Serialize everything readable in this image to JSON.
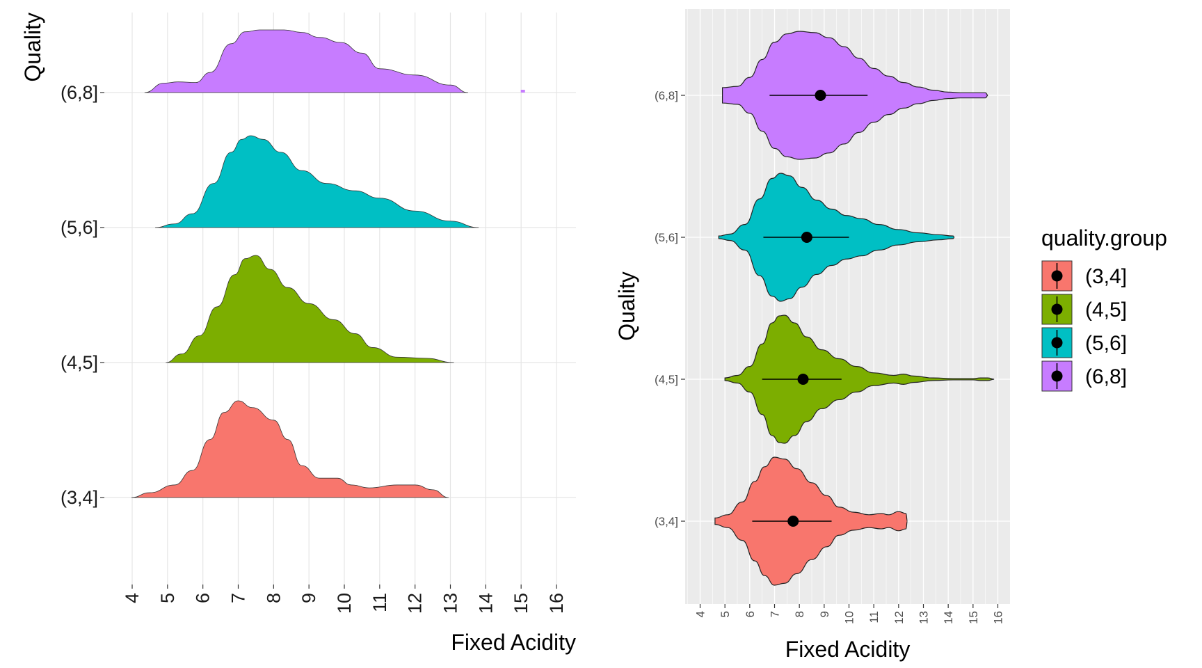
{
  "colors": {
    "(3,4]": "#F8766D",
    "(4,5]": "#7CAE00",
    "(5,6]": "#00BFC4",
    "(6,8]": "#C77CFF",
    "panel_bg_right": "#EBEBEB",
    "grid_left": "#E5E5E5",
    "grid_right": "#FFFFFF",
    "point": "#000000"
  },
  "chart_data": [
    {
      "type": "ridgeline",
      "xlabel": "Fixed Acidity",
      "ylabel": "Quality",
      "xlim": [
        4,
        16
      ],
      "x_ticks": [
        4,
        5,
        6,
        7,
        8,
        9,
        10,
        11,
        12,
        13,
        14,
        15,
        16
      ],
      "categories": [
        "(3,4]",
        "(4,5]",
        "(5,6]",
        "(6,8]"
      ],
      "grid": true,
      "series": [
        {
          "name": "(3,4]",
          "density": [
            [
              3.98,
              0
            ],
            [
              4.5,
              0.05
            ],
            [
              5.2,
              0.13
            ],
            [
              5.7,
              0.28
            ],
            [
              6.2,
              0.6
            ],
            [
              6.6,
              0.88
            ],
            [
              7.0,
              1.0
            ],
            [
              7.4,
              0.93
            ],
            [
              8.0,
              0.8
            ],
            [
              8.4,
              0.6
            ],
            [
              8.8,
              0.33
            ],
            [
              9.3,
              0.2
            ],
            [
              9.8,
              0.2
            ],
            [
              10.2,
              0.13
            ],
            [
              10.7,
              0.1
            ],
            [
              11.5,
              0.13
            ],
            [
              12.0,
              0.13
            ],
            [
              12.5,
              0.08
            ],
            [
              12.95,
              0
            ]
          ]
        },
        {
          "name": "(4,5]",
          "density": [
            [
              4.95,
              0
            ],
            [
              5.4,
              0.08
            ],
            [
              5.9,
              0.25
            ],
            [
              6.4,
              0.52
            ],
            [
              6.9,
              0.82
            ],
            [
              7.2,
              0.97
            ],
            [
              7.5,
              1.0
            ],
            [
              7.9,
              0.87
            ],
            [
              8.4,
              0.7
            ],
            [
              9.0,
              0.55
            ],
            [
              9.7,
              0.4
            ],
            [
              10.3,
              0.27
            ],
            [
              10.8,
              0.14
            ],
            [
              11.5,
              0.05
            ],
            [
              12.3,
              0.04
            ],
            [
              13.1,
              0
            ]
          ]
        },
        {
          "name": "(5,6]",
          "density": [
            [
              4.65,
              0
            ],
            [
              5.2,
              0.04
            ],
            [
              5.7,
              0.15
            ],
            [
              6.3,
              0.48
            ],
            [
              6.8,
              0.82
            ],
            [
              7.1,
              0.96
            ],
            [
              7.35,
              1.0
            ],
            [
              7.7,
              0.96
            ],
            [
              8.2,
              0.82
            ],
            [
              8.8,
              0.62
            ],
            [
              9.5,
              0.48
            ],
            [
              10.3,
              0.4
            ],
            [
              11.0,
              0.32
            ],
            [
              12.0,
              0.18
            ],
            [
              13.0,
              0.07
            ],
            [
              13.8,
              0
            ]
          ]
        },
        {
          "name": "(6,8]",
          "density": [
            [
              4.35,
              0
            ],
            [
              4.9,
              0.15
            ],
            [
              5.3,
              0.17
            ],
            [
              5.8,
              0.16
            ],
            [
              6.2,
              0.32
            ],
            [
              6.8,
              0.78
            ],
            [
              7.2,
              0.97
            ],
            [
              7.6,
              1.0
            ],
            [
              8.3,
              1.0
            ],
            [
              8.8,
              0.96
            ],
            [
              9.3,
              0.88
            ],
            [
              9.9,
              0.8
            ],
            [
              10.5,
              0.63
            ],
            [
              11.0,
              0.38
            ],
            [
              12.0,
              0.28
            ],
            [
              13.0,
              0.12
            ],
            [
              13.5,
              0
            ]
          ]
        }
      ],
      "outlier_blips": [
        {
          "series": "(6,8]",
          "x": 15.05
        }
      ]
    },
    {
      "type": "violin",
      "xlabel": "Fixed Acidity",
      "ylabel": "Quality",
      "xlim": [
        4,
        16
      ],
      "x_ticks": [
        4,
        5,
        6,
        7,
        8,
        9,
        10,
        11,
        12,
        13,
        14,
        15,
        16
      ],
      "categories": [
        "(3,4]",
        "(4,5]",
        "(5,6]",
        "(6,8]"
      ],
      "legend": {
        "title": "quality.group",
        "position": "right",
        "entries": [
          "(3,4]",
          "(4,5]",
          "(5,6]",
          "(6,8]"
        ]
      },
      "series": [
        {
          "name": "(3,4]",
          "mean": 7.75,
          "sd_range": [
            6.1,
            9.3
          ],
          "profile": [
            [
              4.6,
              0.05
            ],
            [
              5.1,
              0.1
            ],
            [
              5.7,
              0.3
            ],
            [
              6.2,
              0.62
            ],
            [
              6.6,
              0.85
            ],
            [
              7.0,
              1.0
            ],
            [
              7.4,
              0.97
            ],
            [
              7.9,
              0.82
            ],
            [
              8.5,
              0.6
            ],
            [
              9.1,
              0.4
            ],
            [
              9.6,
              0.22
            ],
            [
              10.2,
              0.14
            ],
            [
              10.8,
              0.1
            ],
            [
              11.3,
              0.12
            ],
            [
              11.6,
              0.1
            ],
            [
              12.0,
              0.15
            ],
            [
              12.3,
              0.12
            ],
            [
              12.35,
              0.0
            ]
          ]
        },
        {
          "name": "(4,5]",
          "mean": 8.15,
          "sd_range": [
            6.5,
            9.7
          ],
          "profile": [
            [
              5.0,
              0.02
            ],
            [
              5.5,
              0.06
            ],
            [
              6.0,
              0.2
            ],
            [
              6.5,
              0.55
            ],
            [
              6.9,
              0.88
            ],
            [
              7.2,
              0.99
            ],
            [
              7.4,
              1.0
            ],
            [
              7.8,
              0.88
            ],
            [
              8.3,
              0.66
            ],
            [
              8.9,
              0.46
            ],
            [
              9.6,
              0.32
            ],
            [
              10.3,
              0.2
            ],
            [
              11.0,
              0.1
            ],
            [
              11.8,
              0.06
            ],
            [
              12.2,
              0.08
            ],
            [
              12.6,
              0.05
            ],
            [
              13.4,
              0.02
            ],
            [
              14.2,
              0.01
            ],
            [
              15.0,
              0.01
            ],
            [
              15.3,
              0.02
            ],
            [
              15.6,
              0.02
            ],
            [
              15.85,
              0.0
            ]
          ]
        },
        {
          "name": "(5,6]",
          "mean": 8.3,
          "sd_range": [
            6.55,
            10.0
          ],
          "profile": [
            [
              4.75,
              0.02
            ],
            [
              5.2,
              0.05
            ],
            [
              5.8,
              0.2
            ],
            [
              6.4,
              0.6
            ],
            [
              6.9,
              0.92
            ],
            [
              7.25,
              1.0
            ],
            [
              7.6,
              0.96
            ],
            [
              8.1,
              0.78
            ],
            [
              8.7,
              0.58
            ],
            [
              9.3,
              0.44
            ],
            [
              9.9,
              0.34
            ],
            [
              10.5,
              0.29
            ],
            [
              11.2,
              0.2
            ],
            [
              12.0,
              0.12
            ],
            [
              12.8,
              0.07
            ],
            [
              13.6,
              0.04
            ],
            [
              14.2,
              0.02
            ],
            [
              14.25,
              0.0
            ]
          ]
        },
        {
          "name": "(6,8]",
          "mean": 8.85,
          "sd_range": [
            6.8,
            10.75
          ],
          "profile": [
            [
              4.9,
              0.12
            ],
            [
              5.5,
              0.14
            ],
            [
              6.0,
              0.28
            ],
            [
              6.5,
              0.56
            ],
            [
              7.0,
              0.83
            ],
            [
              7.5,
              0.96
            ],
            [
              8.0,
              1.0
            ],
            [
              8.6,
              0.98
            ],
            [
              9.2,
              0.9
            ],
            [
              9.8,
              0.76
            ],
            [
              10.4,
              0.58
            ],
            [
              11.0,
              0.42
            ],
            [
              11.6,
              0.3
            ],
            [
              12.2,
              0.2
            ],
            [
              12.8,
              0.13
            ],
            [
              13.4,
              0.08
            ],
            [
              14.0,
              0.05
            ],
            [
              14.5,
              0.04
            ],
            [
              15.0,
              0.04
            ],
            [
              15.5,
              0.04
            ],
            [
              15.6,
              0.0
            ]
          ]
        }
      ]
    }
  ]
}
